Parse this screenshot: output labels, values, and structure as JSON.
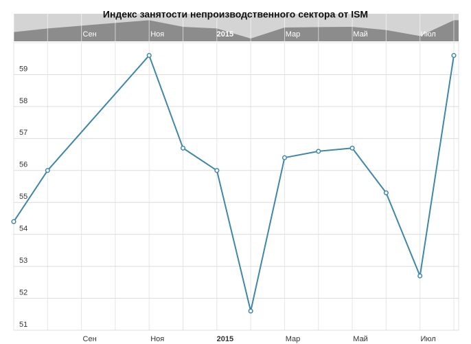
{
  "chart_data": {
    "type": "line",
    "title": "Индекс занятости непроизводственного сектора от ISM",
    "categories": [
      null,
      null,
      "Сен",
      null,
      "Ноя",
      null,
      "2015",
      null,
      "Мар",
      null,
      "Май",
      null,
      "Июл",
      null
    ],
    "series": [
      {
        "name": null,
        "color": "#3e87a8",
        "values": [
          54.4,
          56.0,
          null,
          null,
          59.6,
          56.7,
          56.0,
          51.6,
          56.4,
          56.6,
          56.7,
          55.3,
          52.7,
          59.6
        ]
      }
    ],
    "ylim": [
      51,
      60
    ],
    "yticks": [
      51,
      52,
      53,
      54,
      55,
      56,
      57,
      58,
      59
    ],
    "grid": true
  }
}
